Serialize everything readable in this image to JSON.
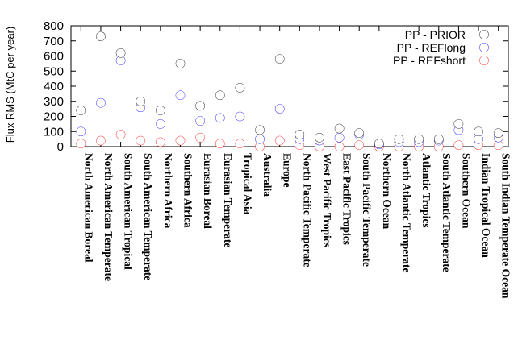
{
  "chart_data": {
    "type": "scatter",
    "ylabel": "Flux RMS (MtC per year)",
    "xlabel": "",
    "ylim": [
      0,
      800
    ],
    "yticks": [
      0,
      100,
      200,
      300,
      400,
      500,
      600,
      700,
      800
    ],
    "legend_position": "top-right",
    "categories": [
      "North American Boreal",
      "North American Temperate",
      "South American Tropical",
      "South American Temperate",
      "Northern Africa",
      "Southern Africa",
      "Eurasian Boreal",
      "Eurasian Temperate",
      "Tropical Asia",
      "Australia",
      "Europe",
      "North Pacific Temperate",
      "West Pacific Tropics",
      "East Pacific Tropics",
      "South Pacific Temperate",
      "Northern Ocean",
      "North Atlantic Temperate",
      "Atlantic Tropics",
      "South Atlantic Temperate",
      "Southern Ocean",
      "Indian Tropical Ocean",
      "South Indian Temperate Ocean"
    ],
    "series": [
      {
        "name": "PP - PRIOR",
        "color": "#000000",
        "values": [
          240,
          730,
          620,
          300,
          240,
          550,
          270,
          340,
          390,
          110,
          580,
          80,
          60,
          120,
          90,
          20,
          50,
          50,
          50,
          150,
          100,
          90
        ]
      },
      {
        "name": "PP - REFlong",
        "color": "#0000ff",
        "values": [
          100,
          290,
          570,
          260,
          150,
          340,
          170,
          190,
          200,
          50,
          250,
          50,
          40,
          60,
          80,
          15,
          30,
          30,
          40,
          110,
          50,
          60
        ]
      },
      {
        "name": "PP - REFshort",
        "color": "#ff0000",
        "values": [
          20,
          40,
          80,
          40,
          30,
          40,
          60,
          20,
          20,
          0,
          40,
          10,
          0,
          0,
          10,
          0,
          0,
          0,
          0,
          10,
          10,
          10
        ]
      }
    ]
  }
}
